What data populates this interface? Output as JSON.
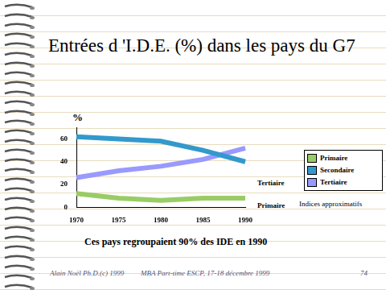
{
  "chart_data": {
    "type": "line",
    "title": "Entrées d 'I.D.E. (%) dans les pays du G7",
    "ylabel": "%",
    "categories": [
      "1970",
      "1975",
      "1980",
      "1985",
      "1990"
    ],
    "series": [
      {
        "name": "Primaire",
        "color": "#99cc66",
        "values": [
          12,
          8,
          6,
          8,
          8
        ]
      },
      {
        "name": "Secondaire",
        "color": "#3399cc",
        "values": [
          62,
          60,
          58,
          50,
          40
        ]
      },
      {
        "name": "Tertiaire",
        "color": "#9999ff",
        "values": [
          26,
          32,
          36,
          42,
          52
        ]
      }
    ],
    "ylim": [
      0,
      70
    ],
    "yticks": [
      0,
      20,
      40,
      60
    ],
    "grid": false,
    "legend": "right",
    "annotations": [
      "Tertiaire",
      "Primaire",
      "Indices approximatifs",
      "Ces pays regroupaient 90% des IDE en 1990"
    ]
  },
  "footer": {
    "left": "Alain Noël Ph.D.(c) 1999",
    "center": "MBA Part-time ESCP, 17-18 décembre 1999",
    "page": "74"
  }
}
